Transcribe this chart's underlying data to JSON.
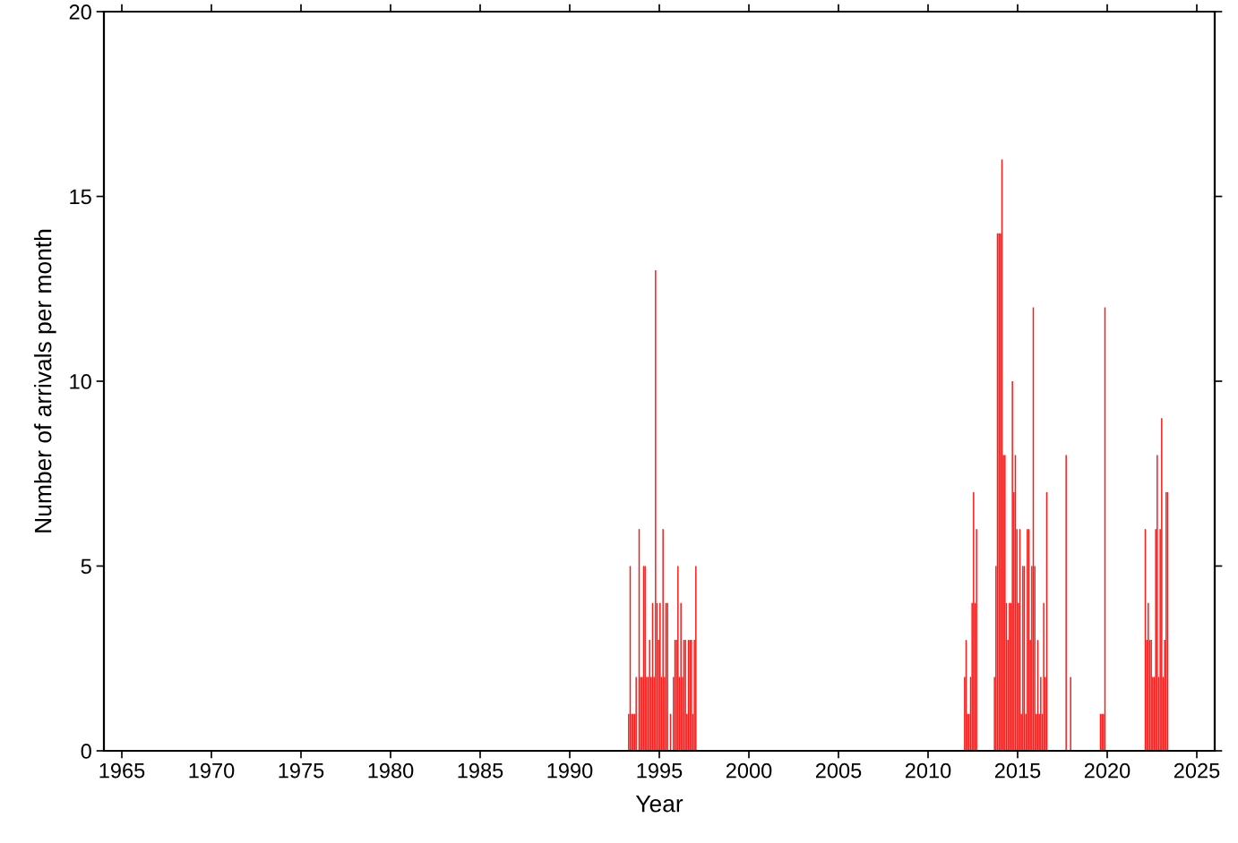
{
  "chart_data": {
    "type": "bar",
    "xlabel": "Year",
    "ylabel": "Number of arrivals per month",
    "x": [
      "1993-04",
      "1993-05",
      "1993-06",
      "1993-07",
      "1993-08",
      "1993-09",
      "1993-10",
      "1993-11",
      "1993-12",
      "1994-01",
      "1994-02",
      "1994-03",
      "1994-04",
      "1994-05",
      "1994-06",
      "1994-07",
      "1994-08",
      "1994-09",
      "1994-10",
      "1994-11",
      "1994-12",
      "1995-01",
      "1995-02",
      "1995-03",
      "1995-04",
      "1995-05",
      "1995-06",
      "1995-07",
      "1995-08",
      "1995-09",
      "1995-10",
      "1995-11",
      "1995-12",
      "1996-01",
      "1996-02",
      "1996-03",
      "1996-04",
      "1996-05",
      "1996-06",
      "1996-07",
      "1996-08",
      "1996-09",
      "1996-10",
      "1996-11",
      "1996-12",
      "1997-01",
      "2012-01",
      "2012-02",
      "2012-03",
      "2012-04",
      "2012-05",
      "2012-06",
      "2012-07",
      "2012-08",
      "2012-09",
      "2013-09",
      "2013-10",
      "2013-11",
      "2013-12",
      "2014-01",
      "2014-02",
      "2014-03",
      "2014-04",
      "2014-05",
      "2014-06",
      "2014-07",
      "2014-08",
      "2014-09",
      "2014-10",
      "2014-11",
      "2014-12",
      "2015-01",
      "2015-02",
      "2015-03",
      "2015-04",
      "2015-05",
      "2015-06",
      "2015-07",
      "2015-08",
      "2015-09",
      "2015-10",
      "2015-11",
      "2015-12",
      "2016-01",
      "2016-02",
      "2016-03",
      "2016-04",
      "2016-05",
      "2016-06",
      "2016-07",
      "2016-08",
      "2017-09",
      "2017-12",
      "2019-08",
      "2019-09",
      "2019-10",
      "2019-11",
      "2022-02",
      "2022-03",
      "2022-04",
      "2022-05",
      "2022-06",
      "2022-07",
      "2022-08",
      "2022-09",
      "2022-10",
      "2022-11",
      "2022-12",
      "2023-01",
      "2023-02",
      "2023-03",
      "2023-04",
      "2023-05"
    ],
    "values": [
      1,
      5,
      1,
      1,
      1,
      2,
      0,
      6,
      2,
      2,
      5,
      5,
      2,
      2,
      3,
      2,
      4,
      2,
      13,
      4,
      3,
      4,
      2,
      6,
      2,
      4,
      4,
      0,
      1,
      0,
      2,
      3,
      3,
      5,
      2,
      4,
      2,
      3,
      3,
      1,
      3,
      3,
      3,
      1,
      3,
      5,
      2,
      3,
      1,
      1,
      2,
      4,
      7,
      4,
      6,
      2,
      5,
      14,
      14,
      14,
      16,
      8,
      8,
      4,
      3,
      4,
      4,
      10,
      7,
      8,
      6,
      4,
      6,
      1,
      5,
      5,
      1,
      6,
      6,
      3,
      5,
      12,
      5,
      1,
      3,
      1,
      2,
      1,
      4,
      2,
      7,
      8,
      2,
      1,
      1,
      1,
      12,
      6,
      3,
      4,
      3,
      3,
      2,
      2,
      6,
      8,
      2,
      6,
      9,
      2,
      3,
      7,
      7
    ],
    "color": "#ff1a1a",
    "xlim": [
      "1964",
      "2026"
    ],
    "xticks": [
      "1965",
      "1970",
      "1975",
      "1980",
      "1985",
      "1990",
      "1995",
      "2000",
      "2005",
      "2010",
      "2015",
      "2020",
      "2025"
    ],
    "ylim": [
      0,
      20
    ],
    "yticks": [
      0,
      5,
      10,
      15,
      20
    ],
    "grid": false,
    "legend": false
  }
}
